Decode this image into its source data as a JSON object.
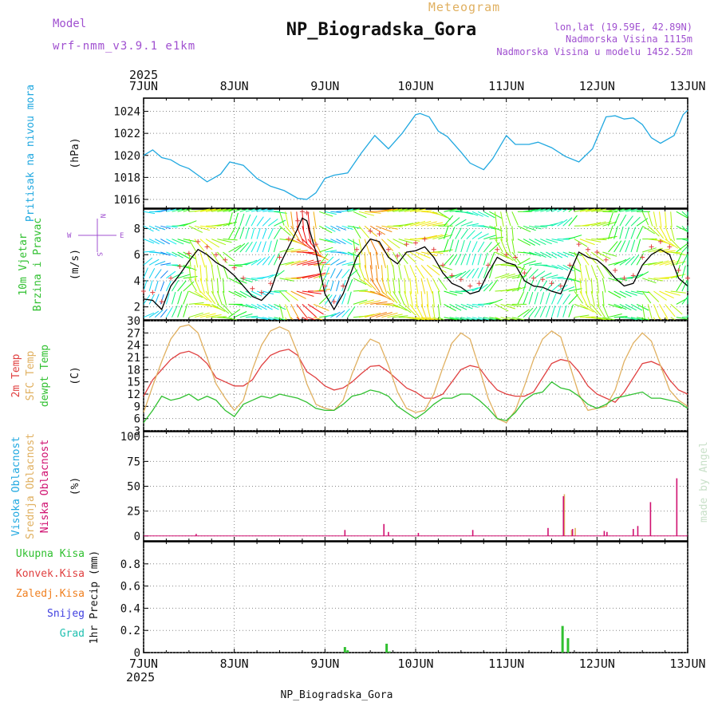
{
  "header": {
    "meteogram_label": "Meteogram",
    "model_label": "Model",
    "model_name": "wrf-nmm_v3.9.1 e1km",
    "station": "NP_Biogradska_Gora",
    "lonlat": "lon,lat (19.59E, 42.89N)",
    "elevation": "Nadmorska Visina 1115m",
    "model_elevation": "Nadmorska Visina u modelu 1452.52m",
    "year_top": "2025",
    "year_bottom": "2025",
    "footer_station": "NP_Biogradska_Gora",
    "watermark": "made by Angel",
    "colors": {
      "purple": "#a050d0",
      "gold": "#e0b060",
      "cyan": "#20a8e0",
      "green": "#30c030",
      "red": "#e04040",
      "orange": "#f08020",
      "blue": "#4040e0",
      "teal": "#20c0b0",
      "magenta": "#d01070",
      "watermark": "#c8e0c8"
    }
  },
  "x_axis": {
    "ticks": [
      "7JUN",
      "8JUN",
      "9JUN",
      "10JUN",
      "11JUN",
      "12JUN",
      "13JUN"
    ],
    "range_days": [
      0,
      6
    ]
  },
  "wind_panel_compass": {
    "n": "N",
    "s": "S",
    "e": "E",
    "w": "W"
  },
  "chart_data": [
    {
      "type": "line",
      "panel": "pressure",
      "ylabel_outer": "Pritisak na nivou mora",
      "ylabel_inner": "(hPa)",
      "ylim": [
        1015.2,
        1025.2
      ],
      "yticks": [
        1016,
        1018,
        1020,
        1022,
        1024
      ],
      "series": [
        {
          "name": "Pritisak na nivou mora",
          "color": "#20a8e0",
          "x": [
            0,
            0.1,
            0.2,
            0.3,
            0.4,
            0.5,
            0.6,
            0.7,
            0.85,
            0.95,
            1.1,
            1.25,
            1.4,
            1.55,
            1.7,
            1.8,
            1.9,
            2.0,
            2.1,
            2.25,
            2.4,
            2.55,
            2.7,
            2.85,
            3.0,
            3.05,
            3.15,
            3.25,
            3.35,
            3.5,
            3.6,
            3.75,
            3.85,
            4.0,
            4.1,
            4.25,
            4.35,
            4.5,
            4.65,
            4.8,
            4.95,
            5.1,
            5.2,
            5.3,
            5.4,
            5.5,
            5.6,
            5.7,
            5.85,
            5.95,
            6.0
          ],
          "values": [
            1020.0,
            1020.5,
            1019.8,
            1019.6,
            1019.1,
            1018.8,
            1018.2,
            1017.6,
            1018.3,
            1019.4,
            1019.1,
            1017.9,
            1017.2,
            1016.8,
            1016.1,
            1016.0,
            1016.6,
            1017.9,
            1018.2,
            1018.4,
            1020.2,
            1021.8,
            1020.6,
            1022.0,
            1023.7,
            1023.8,
            1023.5,
            1022.2,
            1021.7,
            1020.3,
            1019.3,
            1018.7,
            1019.7,
            1021.8,
            1021.0,
            1021.0,
            1021.2,
            1020.7,
            1019.9,
            1019.4,
            1020.6,
            1023.5,
            1023.6,
            1023.3,
            1023.4,
            1022.8,
            1021.6,
            1021.1,
            1021.8,
            1023.7,
            1024.1
          ]
        }
      ]
    },
    {
      "type": "line",
      "panel": "wind",
      "ylabel_outer": [
        "10m Vjetar",
        "Brzina i Pravac"
      ],
      "ylabel_inner": "(m/s)",
      "ylim": [
        1.0,
        9.5
      ],
      "yticks": [
        2,
        4,
        6,
        8
      ],
      "series": [
        {
          "name": "Brzina",
          "color": "#000000",
          "x": [
            0,
            0.1,
            0.2,
            0.3,
            0.4,
            0.5,
            0.6,
            0.7,
            0.8,
            0.9,
            1.0,
            1.1,
            1.2,
            1.3,
            1.4,
            1.5,
            1.6,
            1.7,
            1.75,
            1.8,
            1.9,
            2.0,
            2.1,
            2.2,
            2.35,
            2.5,
            2.6,
            2.7,
            2.8,
            2.9,
            3.0,
            3.1,
            3.2,
            3.3,
            3.4,
            3.5,
            3.6,
            3.7,
            3.8,
            3.9,
            4.0,
            4.1,
            4.2,
            4.3,
            4.4,
            4.5,
            4.6,
            4.7,
            4.8,
            4.9,
            5.0,
            5.1,
            5.2,
            5.3,
            5.4,
            5.5,
            5.6,
            5.7,
            5.8,
            5.9,
            6.0
          ],
          "values": [
            2.6,
            2.5,
            1.8,
            3.6,
            4.5,
            5.5,
            6.4,
            6.0,
            5.4,
            5.0,
            4.4,
            3.6,
            2.8,
            2.5,
            3.2,
            5.2,
            6.6,
            8.0,
            8.8,
            8.6,
            6.2,
            3.0,
            1.8,
            3.0,
            5.8,
            7.2,
            7.0,
            5.8,
            5.3,
            6.2,
            6.3,
            6.6,
            5.8,
            4.6,
            3.8,
            3.5,
            3.0,
            3.2,
            4.6,
            5.8,
            5.4,
            5.2,
            4.0,
            3.6,
            3.5,
            3.2,
            3.0,
            4.6,
            6.2,
            5.8,
            5.6,
            5.0,
            4.2,
            3.6,
            3.8,
            5.2,
            6.0,
            6.4,
            6.0,
            4.2,
            3.6
          ]
        }
      ]
    },
    {
      "type": "line",
      "panel": "temperature",
      "ylabel_outer": [
        "2m Temp",
        "SFC Temp",
        "dewpt Temp"
      ],
      "ylabel_inner": "(C)",
      "ylim": [
        3,
        30
      ],
      "yticks": [
        3,
        6,
        9,
        12,
        15,
        18,
        21,
        24,
        27,
        30
      ],
      "series": [
        {
          "name": "2m Temp",
          "color": "#e04040",
          "x": [
            0,
            0.1,
            0.2,
            0.3,
            0.4,
            0.5,
            0.6,
            0.7,
            0.8,
            0.9,
            1.0,
            1.1,
            1.2,
            1.3,
            1.4,
            1.5,
            1.6,
            1.7,
            1.8,
            1.9,
            2.0,
            2.1,
            2.2,
            2.3,
            2.4,
            2.5,
            2.6,
            2.7,
            2.8,
            2.9,
            3.0,
            3.1,
            3.2,
            3.3,
            3.4,
            3.5,
            3.6,
            3.7,
            3.8,
            3.9,
            4.0,
            4.1,
            4.2,
            4.3,
            4.4,
            4.5,
            4.6,
            4.7,
            4.8,
            4.9,
            5.0,
            5.1,
            5.2,
            5.3,
            5.4,
            5.5,
            5.6,
            5.7,
            5.8,
            5.9,
            6.0
          ],
          "values": [
            11.5,
            15.5,
            18,
            20.5,
            22,
            22.5,
            21.5,
            19.5,
            16,
            15,
            14,
            14,
            15.5,
            19,
            21.5,
            22.5,
            23,
            21.5,
            17.5,
            16,
            14,
            13,
            13.5,
            15,
            17,
            18.8,
            19,
            17.5,
            15.5,
            13.5,
            12.5,
            11,
            11,
            12,
            15,
            18,
            19,
            18.5,
            15.5,
            13,
            12,
            11.5,
            11.5,
            12.5,
            16,
            19.5,
            20.5,
            20,
            17.5,
            14,
            12,
            11,
            10,
            12.5,
            16,
            19.5,
            20,
            19,
            15.5,
            13,
            12
          ]
        },
        {
          "name": "SFC Temp",
          "color": "#e0b060",
          "x": [
            0,
            0.1,
            0.2,
            0.3,
            0.4,
            0.5,
            0.6,
            0.7,
            0.8,
            0.9,
            1.0,
            1.1,
            1.2,
            1.3,
            1.4,
            1.5,
            1.6,
            1.7,
            1.8,
            1.9,
            2.0,
            2.1,
            2.2,
            2.3,
            2.4,
            2.5,
            2.6,
            2.7,
            2.8,
            2.9,
            3.0,
            3.1,
            3.2,
            3.3,
            3.4,
            3.5,
            3.6,
            3.7,
            3.8,
            3.9,
            4.0,
            4.1,
            4.2,
            4.3,
            4.4,
            4.5,
            4.6,
            4.7,
            4.8,
            4.9,
            5.0,
            5.1,
            5.2,
            5.3,
            5.4,
            5.5,
            5.6,
            5.7,
            5.8,
            5.9,
            6.0
          ],
          "values": [
            7.5,
            14,
            20,
            25.5,
            28.5,
            29,
            27,
            21,
            14.5,
            11,
            8,
            10.5,
            18,
            24,
            27.5,
            28.5,
            27.5,
            22,
            14.5,
            9.5,
            8.5,
            8,
            10.5,
            17,
            22.5,
            25.5,
            24.5,
            19,
            12.5,
            8.5,
            7.5,
            8,
            12,
            18.5,
            24.5,
            27,
            25.5,
            18.5,
            11,
            6,
            5,
            8,
            14,
            20.5,
            25.5,
            27.5,
            26,
            19,
            12,
            8,
            8.5,
            9,
            13,
            20,
            24.5,
            27,
            25,
            19,
            13,
            10.5,
            9
          ]
        },
        {
          "name": "dewpt Temp",
          "color": "#30c030",
          "x": [
            0,
            0.1,
            0.2,
            0.3,
            0.4,
            0.5,
            0.6,
            0.7,
            0.8,
            0.9,
            1.0,
            1.1,
            1.2,
            1.3,
            1.4,
            1.5,
            1.6,
            1.7,
            1.8,
            1.9,
            2.0,
            2.1,
            2.2,
            2.3,
            2.4,
            2.5,
            2.6,
            2.7,
            2.8,
            2.9,
            3.0,
            3.1,
            3.2,
            3.3,
            3.4,
            3.5,
            3.6,
            3.7,
            3.8,
            3.9,
            4.0,
            4.1,
            4.2,
            4.3,
            4.4,
            4.5,
            4.6,
            4.7,
            4.8,
            4.9,
            5.0,
            5.1,
            5.2,
            5.3,
            5.4,
            5.5,
            5.6,
            5.7,
            5.8,
            5.9,
            6.0
          ],
          "values": [
            5,
            8,
            11.5,
            10.5,
            11,
            12,
            10.5,
            11.5,
            10.5,
            8,
            6.5,
            9.5,
            10.5,
            11.5,
            11,
            12,
            11.5,
            11,
            10,
            8.5,
            8,
            8,
            9.5,
            11.5,
            12,
            13,
            12.5,
            11.5,
            9,
            7.5,
            6,
            7.5,
            9.5,
            11,
            11,
            12,
            12,
            10.5,
            8.5,
            6,
            5.5,
            7.5,
            10.5,
            12,
            12.5,
            15,
            13.5,
            13,
            11.5,
            9.5,
            8.5,
            9.5,
            11,
            11.5,
            12,
            12.5,
            11,
            11,
            10.5,
            10,
            8.5
          ]
        }
      ]
    },
    {
      "type": "bar",
      "panel": "clouds",
      "ylabel_outer": [
        "Visoka Oblacnost",
        "Srednja Oblacnost",
        "Niska Oblacnost"
      ],
      "ylabel_inner": "(%)",
      "ylim": [
        -5,
        105
      ],
      "yticks": [
        0,
        25,
        50,
        75,
        100
      ],
      "series": [
        {
          "name": "Visoka Oblacnost",
          "color": "#20a8e0",
          "x": [
            4.63
          ],
          "values": [
            38
          ]
        },
        {
          "name": "Srednja Oblacnost",
          "color": "#e0b060",
          "x": [
            4.64,
            4.72,
            4.76
          ],
          "values": [
            42,
            6,
            8
          ]
        },
        {
          "name": "Niska Oblacnost",
          "color": "#d01070",
          "x": [
            0.58,
            2.22,
            2.65,
            2.7,
            3.03,
            3.63,
            4.46,
            4.63,
            4.73,
            5.08,
            5.11,
            5.4,
            5.45,
            5.59,
            5.88
          ],
          "values": [
            2,
            6,
            12,
            4,
            3,
            6,
            8,
            40,
            7,
            5,
            4,
            7,
            10,
            34,
            58
          ]
        }
      ]
    },
    {
      "type": "bar",
      "panel": "precipitation",
      "ylabel_outer": [
        "Ukupna Kisa",
        "Konvek.Kisa",
        "Zaledj.Kisa",
        "Snijeg",
        "Grad"
      ],
      "ylabel_inner": "1hr Precip (mm)",
      "ylim": [
        0,
        1.0
      ],
      "yticks": [
        0,
        0.2,
        0.4,
        0.6,
        0.8
      ],
      "series": [
        {
          "name": "Ukupna Kisa",
          "color": "#30c030",
          "x": [
            2.22,
            2.25,
            2.68,
            2.71,
            4.62,
            4.68
          ],
          "values": [
            0.05,
            0.02,
            0.08,
            0.01,
            0.24,
            0.13
          ]
        }
      ]
    }
  ]
}
